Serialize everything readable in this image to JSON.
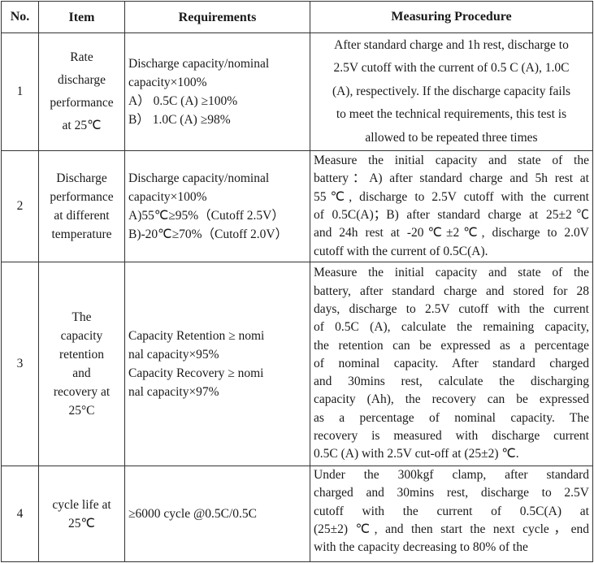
{
  "header": {
    "no": "No.",
    "item": "Item",
    "requirements": "Requirements",
    "procedure": "Measuring Procedure"
  },
  "rows": [
    {
      "no": "1",
      "item": [
        "Rate",
        "discharge",
        "performance",
        "at 25℃"
      ],
      "req": [
        "Discharge capacity/nominal",
        "capacity×100%",
        "A） 0.5C (A) ≥100%",
        "B） 1.0C (A) ≥98%"
      ],
      "proc": [
        "After standard charge and 1h rest, discharge to",
        "2.5V cutoff with the current of 0.5 C (A), 1.0C",
        "(A), respectively. If the discharge capacity fails",
        "to meet the technical requirements, this test is",
        "allowed to be repeated three times"
      ]
    },
    {
      "no": "2",
      "item": [
        "Discharge",
        "performance",
        "at different",
        "temperature"
      ],
      "req": [
        "Discharge capacity/nominal",
        "capacity×100%",
        "A)55℃≥95%（Cutoff 2.5V）",
        "B)-20℃≥70%（Cutoff 2.0V）"
      ],
      "proc": [
        "Measure the initial capacity and state of the",
        "battery：A) after standard charge and 5h rest at",
        "55℃, discharge to 2.5V cutoff with the current",
        "of 0.5C(A)；B) after standard charge at 25±2℃",
        "and 24h rest at -20℃±2℃, discharge to 2.0V",
        "cutoff with the current of 0.5C(A)."
      ]
    },
    {
      "no": "3",
      "item": [
        "The",
        "capacity",
        "retention",
        "and",
        "recovery at",
        "25°C"
      ],
      "req": [
        "Capacity Retention ≥ nomi",
        "nal capacity×95%",
        "Capacity Recovery ≥ nomi",
        "nal capacity×97%"
      ],
      "proc": [
        "Measure the initial capacity and state of the",
        "battery, after standard charge and stored for 28",
        "days, discharge to 2.5V cutoff with the current",
        "of 0.5C (A), calculate the remaining capacity,",
        "the retention can be expressed as a percentage",
        "of nominal capacity. After standard charged",
        "and 30mins rest, calculate the discharging",
        "capacity (Ah), the recovery can be expressed",
        "as a percentage of nominal capacity. The",
        "recovery is measured with discharge current",
        "0.5C (A) with 2.5V cut-off at (25±2) ℃."
      ]
    },
    {
      "no": "4",
      "item": [
        "cycle life at",
        "25℃"
      ],
      "req": [
        "≥6000 cycle @0.5C/0.5C"
      ],
      "proc": [
        "Under the 300kgf clamp, after standard",
        "charged and 30mins rest, discharge to 2.5V",
        "cutoff with the current of 0.5C(A) at",
        "(25±2) ℃, and then start the next cycle，end",
        "with the capacity decreasing to 80% of the"
      ]
    }
  ]
}
